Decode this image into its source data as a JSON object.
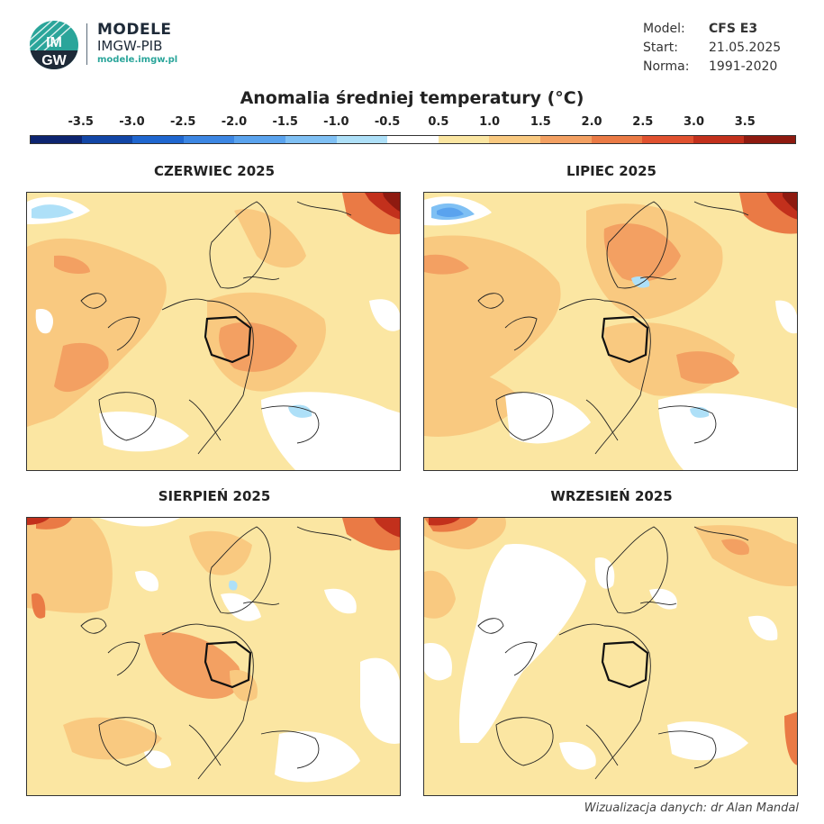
{
  "header": {
    "brand_title": "MODELE",
    "brand_sub": "IMGW-PIB",
    "brand_url": "modele.imgw.pl",
    "logo_text_top": "IM",
    "logo_text_bottom": "GW"
  },
  "meta": {
    "model_label": "Model:",
    "model_value": "CFS E3",
    "start_label": "Start:",
    "start_value": "21.05.2025",
    "norm_label": "Norma:",
    "norm_value": "1991-2020"
  },
  "title": "Anomalia średniej temperatury (°C)",
  "colorbar": {
    "labels": [
      "-3.5",
      "-3.0",
      "-2.5",
      "-2.0",
      "-1.5",
      "-1.0",
      "-0.5",
      "0.5",
      "1.0",
      "1.5",
      "2.0",
      "2.5",
      "3.0",
      "3.5"
    ],
    "colors": [
      "#0d2470",
      "#1246a6",
      "#1f66cf",
      "#3c86e3",
      "#5aa3ee",
      "#7fc0f4",
      "#aee0f8",
      "#ffffff",
      "#fbe6a2",
      "#f9c980",
      "#f3a062",
      "#ea7a45",
      "#e0512f",
      "#c2301c",
      "#8e1a10"
    ]
  },
  "panels": [
    {
      "title": "CZERWIEC 2025"
    },
    {
      "title": "LIPIEC 2025"
    },
    {
      "title": "SIERPIEŃ 2025"
    },
    {
      "title": "WRZESIEŃ 2025"
    }
  ],
  "credit": "Wizualizacja danych: dr Alan Mandal"
}
